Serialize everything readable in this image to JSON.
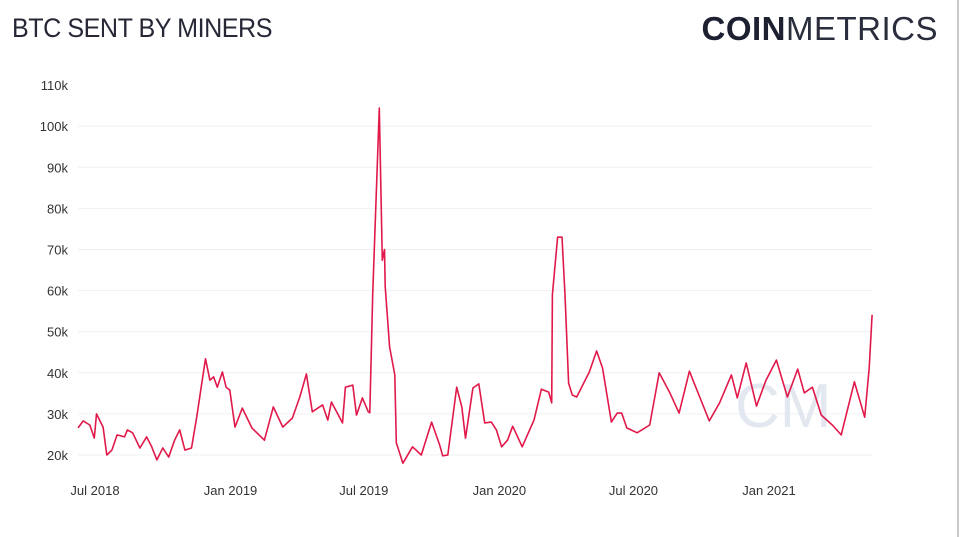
{
  "header": {
    "title": "BTC SENT BY MINERS",
    "logo_bold": "COIN",
    "logo_light": "METRICS",
    "watermark": "CM"
  },
  "chart_data": {
    "type": "line",
    "title": "BTC SENT BY MINERS",
    "xlabel": "",
    "ylabel": "",
    "ylim": [
      20000,
      110000
    ],
    "yticks": [
      20000,
      30000,
      40000,
      50000,
      60000,
      70000,
      80000,
      90000,
      100000,
      110000
    ],
    "ytick_labels": [
      "20k",
      "30k",
      "40k",
      "50k",
      "60k",
      "70k",
      "80k",
      "90k",
      "100k",
      "110k"
    ],
    "xticks": [
      "2018-07-01",
      "2019-01-01",
      "2019-07-01",
      "2020-01-01",
      "2020-07-01",
      "2021-01-01"
    ],
    "xtick_labels": [
      "Jul 2018",
      "Jan 2019",
      "Jul 2019",
      "Jan 2020",
      "Jul 2020",
      "Jan 2021"
    ],
    "grid": "horizontal",
    "line_color": "#e0194a",
    "series": [
      {
        "points": [
          [
            "2018-06-08",
            26600
          ],
          [
            "2018-06-15",
            28300
          ],
          [
            "2018-06-24",
            27300
          ],
          [
            "2018-06-30",
            24100
          ],
          [
            "2018-07-03",
            30000
          ],
          [
            "2018-07-12",
            26800
          ],
          [
            "2018-07-17",
            20000
          ],
          [
            "2018-07-24",
            21200
          ],
          [
            "2018-07-31",
            24900
          ],
          [
            "2018-08-10",
            24400
          ],
          [
            "2018-08-14",
            26100
          ],
          [
            "2018-08-21",
            25400
          ],
          [
            "2018-08-31",
            21700
          ],
          [
            "2018-09-09",
            24400
          ],
          [
            "2018-09-16",
            22000
          ],
          [
            "2018-09-23",
            18800
          ],
          [
            "2018-10-01",
            21700
          ],
          [
            "2018-10-09",
            19500
          ],
          [
            "2018-10-17",
            23600
          ],
          [
            "2018-10-24",
            26100
          ],
          [
            "2018-10-31",
            21200
          ],
          [
            "2018-11-09",
            21700
          ],
          [
            "2018-11-16",
            29200
          ],
          [
            "2018-11-23",
            37500
          ],
          [
            "2018-11-28",
            43400
          ],
          [
            "2018-12-04",
            38200
          ],
          [
            "2018-12-09",
            39000
          ],
          [
            "2018-12-14",
            36500
          ],
          [
            "2018-12-21",
            40200
          ],
          [
            "2018-12-26",
            36500
          ],
          [
            "2018-12-31",
            35800
          ],
          [
            "2019-01-07",
            26800
          ],
          [
            "2019-01-17",
            31400
          ],
          [
            "2019-01-30",
            26600
          ],
          [
            "2019-02-16",
            23600
          ],
          [
            "2019-02-28",
            31700
          ],
          [
            "2019-03-13",
            26800
          ],
          [
            "2019-03-26",
            29000
          ],
          [
            "2019-04-05",
            34100
          ],
          [
            "2019-04-14",
            39700
          ],
          [
            "2019-04-22",
            30500
          ],
          [
            "2019-05-06",
            32200
          ],
          [
            "2019-05-13",
            28500
          ],
          [
            "2019-05-18",
            32900
          ],
          [
            "2019-05-25",
            30500
          ],
          [
            "2019-06-02",
            27800
          ],
          [
            "2019-06-06",
            36500
          ],
          [
            "2019-06-16",
            37000
          ],
          [
            "2019-06-21",
            29700
          ],
          [
            "2019-06-29",
            33900
          ],
          [
            "2019-07-07",
            30500
          ],
          [
            "2019-07-09",
            30300
          ],
          [
            "2019-07-13",
            59000
          ],
          [
            "2019-07-22",
            104400
          ],
          [
            "2019-07-26",
            67400
          ],
          [
            "2019-07-29",
            70000
          ],
          [
            "2019-07-30",
            61000
          ],
          [
            "2019-08-05",
            46300
          ],
          [
            "2019-08-12",
            39500
          ],
          [
            "2019-08-14",
            23000
          ],
          [
            "2019-08-23",
            18000
          ],
          [
            "2019-09-05",
            22000
          ],
          [
            "2019-09-17",
            20000
          ],
          [
            "2019-10-01",
            28000
          ],
          [
            "2019-10-12",
            22400
          ],
          [
            "2019-10-16",
            19800
          ],
          [
            "2019-10-23",
            20000
          ],
          [
            "2019-11-04",
            36500
          ],
          [
            "2019-11-11",
            31700
          ],
          [
            "2019-11-16",
            24100
          ],
          [
            "2019-11-26",
            36300
          ],
          [
            "2019-12-04",
            37300
          ],
          [
            "2019-12-12",
            27800
          ],
          [
            "2019-12-21",
            28000
          ],
          [
            "2019-12-28",
            26100
          ],
          [
            "2020-01-04",
            22000
          ],
          [
            "2020-01-12",
            23600
          ],
          [
            "2020-01-19",
            27000
          ],
          [
            "2020-02-01",
            22000
          ],
          [
            "2020-02-17",
            28500
          ],
          [
            "2020-02-27",
            36000
          ],
          [
            "2020-03-08",
            35300
          ],
          [
            "2020-03-12",
            32700
          ],
          [
            "2020-03-13",
            59000
          ],
          [
            "2020-03-20",
            73000
          ],
          [
            "2020-03-26",
            73000
          ],
          [
            "2020-03-30",
            59000
          ],
          [
            "2020-04-04",
            37500
          ],
          [
            "2020-04-09",
            34600
          ],
          [
            "2020-04-15",
            34100
          ],
          [
            "2020-05-02",
            40200
          ],
          [
            "2020-05-12",
            45300
          ],
          [
            "2020-05-20",
            41200
          ],
          [
            "2020-06-01",
            28000
          ],
          [
            "2020-06-09",
            30200
          ],
          [
            "2020-06-15",
            30200
          ],
          [
            "2020-06-22",
            26600
          ],
          [
            "2020-07-06",
            25400
          ],
          [
            "2020-07-23",
            27300
          ],
          [
            "2020-08-05",
            40000
          ],
          [
            "2020-08-19",
            35300
          ],
          [
            "2020-09-01",
            30200
          ],
          [
            "2020-09-15",
            40400
          ],
          [
            "2020-09-24",
            36300
          ],
          [
            "2020-10-12",
            28300
          ],
          [
            "2020-10-26",
            32700
          ],
          [
            "2020-11-11",
            39500
          ],
          [
            "2020-11-19",
            33900
          ],
          [
            "2020-12-01",
            42400
          ],
          [
            "2020-12-15",
            31900
          ],
          [
            "2020-12-28",
            38200
          ],
          [
            "2021-01-11",
            43100
          ],
          [
            "2021-01-26",
            34100
          ],
          [
            "2021-02-09",
            40900
          ],
          [
            "2021-02-18",
            35100
          ],
          [
            "2021-03-01",
            36500
          ],
          [
            "2021-03-13",
            29700
          ],
          [
            "2021-03-28",
            27300
          ],
          [
            "2021-04-09",
            24900
          ],
          [
            "2021-04-27",
            37800
          ],
          [
            "2021-05-11",
            29200
          ],
          [
            "2021-05-17",
            41200
          ],
          [
            "2021-05-21",
            54100
          ]
        ]
      }
    ]
  }
}
